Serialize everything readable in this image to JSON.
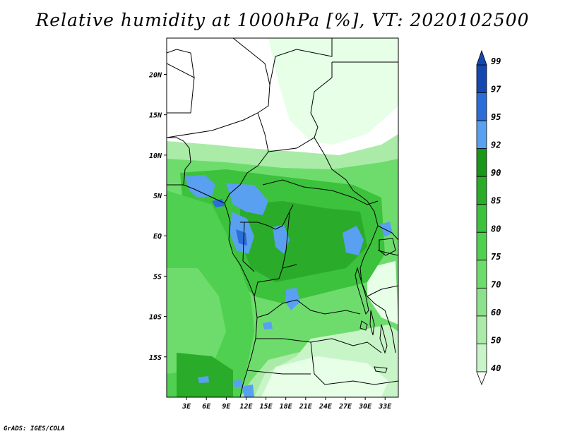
{
  "title": "Relative humidity at 1000hPa [%], VT: 2020102500",
  "footer": "GrADS: IGES/COLA",
  "map": {
    "lon_range": [
      0,
      35
    ],
    "lat_range": [
      -20,
      24.5
    ],
    "lat_ticks": [
      {
        "value": 20,
        "label": "20N"
      },
      {
        "value": 15,
        "label": "15N"
      },
      {
        "value": 10,
        "label": "10N"
      },
      {
        "value": 5,
        "label": "5N"
      },
      {
        "value": 0,
        "label": "EQ"
      },
      {
        "value": -5,
        "label": "5S"
      },
      {
        "value": -10,
        "label": "10S"
      },
      {
        "value": -15,
        "label": "15S"
      }
    ],
    "lon_ticks": [
      {
        "value": 3,
        "label": "3E"
      },
      {
        "value": 6,
        "label": "6E"
      },
      {
        "value": 9,
        "label": "9E"
      },
      {
        "value": 12,
        "label": "12E"
      },
      {
        "value": 15,
        "label": "15E"
      },
      {
        "value": 18,
        "label": "18E"
      },
      {
        "value": 21,
        "label": "21E"
      },
      {
        "value": 24,
        "label": "24E"
      },
      {
        "value": 27,
        "label": "27E"
      },
      {
        "value": 30,
        "label": "30E"
      },
      {
        "value": 33,
        "label": "33E"
      }
    ]
  },
  "colorbar": {
    "levels": [
      40,
      50,
      60,
      70,
      75,
      80,
      85,
      90,
      92,
      95,
      97,
      99
    ],
    "colors": [
      "#e6ffe6",
      "#c8f5c8",
      "#aaeba8",
      "#8ce28a",
      "#6edc6c",
      "#50d050",
      "#3cc23c",
      "#2aac2a",
      "#1a961a",
      "#5aa0f0",
      "#2c6ed8",
      "#1448b0"
    ],
    "below_color": "#ffffff",
    "above_color": "#1448b0"
  }
}
